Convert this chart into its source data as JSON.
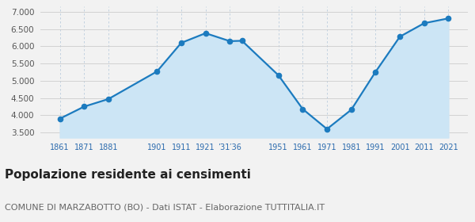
{
  "years": [
    1861,
    1871,
    1881,
    1901,
    1911,
    1921,
    1931,
    1936,
    1951,
    1961,
    1971,
    1981,
    1991,
    2001,
    2011,
    2021
  ],
  "population": [
    3900,
    4250,
    4470,
    5270,
    6100,
    6380,
    6150,
    6160,
    5160,
    4180,
    3600,
    4160,
    5260,
    6280,
    6670,
    6810
  ],
  "yticks": [
    3500,
    4000,
    4500,
    5000,
    5500,
    6000,
    6500,
    7000
  ],
  "ylim": [
    3350,
    7150
  ],
  "xlim_min": 1853,
  "xlim_max": 2029,
  "line_color": "#1c7bbf",
  "fill_color": "#cce5f5",
  "marker_color": "#1c7bbf",
  "grid_color_h": "#cccccc",
  "grid_color_v": "#bbccdd",
  "bg_color": "#f2f2f2",
  "title": "Popolazione residente ai censimenti",
  "subtitle": "COMUNE DI MARZABOTTO (BO) - Dati ISTAT - Elaborazione TUTTITALIA.IT",
  "title_fontsize": 11,
  "subtitle_fontsize": 8,
  "x_positions": [
    1861,
    1871,
    1881,
    1901,
    1911,
    1921,
    1931,
    1951,
    1961,
    1971,
    1981,
    1991,
    2001,
    2011,
    2021
  ],
  "x_labels": [
    "1861",
    "1871",
    "1881",
    "1901",
    "1911",
    "1921",
    "’31′36",
    "1951",
    "1961",
    "1971",
    "1981",
    "1991",
    "2001",
    "2011",
    "2021"
  ]
}
